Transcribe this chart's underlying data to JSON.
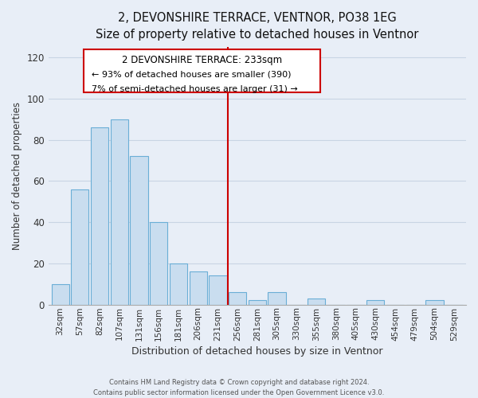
{
  "title": "2, DEVONSHIRE TERRACE, VENTNOR, PO38 1EG",
  "subtitle": "Size of property relative to detached houses in Ventnor",
  "xlabel": "Distribution of detached houses by size in Ventnor",
  "ylabel": "Number of detached properties",
  "bar_labels": [
    "32sqm",
    "57sqm",
    "82sqm",
    "107sqm",
    "131sqm",
    "156sqm",
    "181sqm",
    "206sqm",
    "231sqm",
    "256sqm",
    "281sqm",
    "305sqm",
    "330sqm",
    "355sqm",
    "380sqm",
    "405sqm",
    "430sqm",
    "454sqm",
    "479sqm",
    "504sqm",
    "529sqm"
  ],
  "bar_values": [
    10,
    56,
    86,
    90,
    72,
    40,
    20,
    16,
    14,
    6,
    2,
    6,
    0,
    3,
    0,
    0,
    2,
    0,
    0,
    2,
    0
  ],
  "bar_color": "#c9ddef",
  "bar_edge_color": "#6aaed6",
  "vline_x": 8.5,
  "vline_color": "#cc0000",
  "annotation_title": "2 DEVONSHIRE TERRACE: 233sqm",
  "annotation_line1": "← 93% of detached houses are smaller (390)",
  "annotation_line2": "7% of semi-detached houses are larger (31) →",
  "annotation_box_edge": "#cc0000",
  "ylim": [
    0,
    125
  ],
  "yticks": [
    0,
    20,
    40,
    60,
    80,
    100,
    120
  ],
  "footer_line1": "Contains HM Land Registry data © Crown copyright and database right 2024.",
  "footer_line2": "Contains public sector information licensed under the Open Government Licence v3.0.",
  "bg_color": "#e8eef7",
  "plot_bg_color": "#e8eef7",
  "grid_color": "#c8d4e4"
}
